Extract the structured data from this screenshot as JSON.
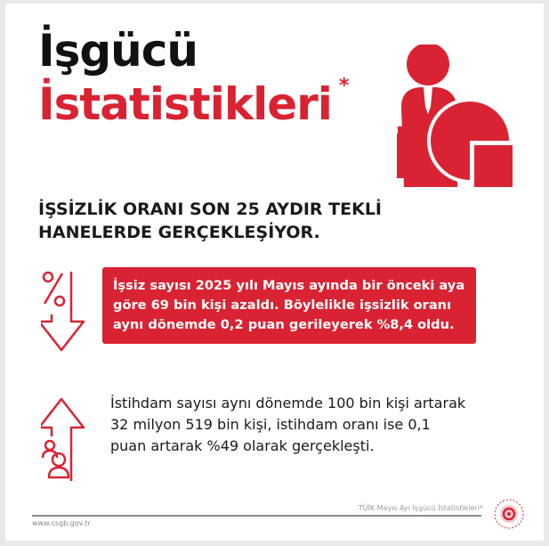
{
  "header": {
    "title_line1": "İşgücü",
    "title_line2": "İstatistikleri",
    "asterisk": "*",
    "hero_icon": "businessman-pie-chart-icon"
  },
  "headline": "İŞSİZLİK ORANI SON 25 AYDIR TEKLİ HANELERDE GERÇEKLEŞİYOR.",
  "unemployment": {
    "icon": "percent-down-arrow-icon",
    "text": "İşsiz sayısı 2025 yılı Mayıs ayında bir önceki aya göre 69 bin kişi azaldı. Böylelikle işsizlik oranı aynı dönemde 0,2 puan gerileyerek %8,4 oldu."
  },
  "employment": {
    "icon": "people-up-arrow-icon",
    "text": "İstihdam sayısı aynı dönemde 100 bin kişi artarak 32 milyon 519 bin kişi, istihdam oranı ise 0,1 puan artarak %49 olarak gerçekleşti."
  },
  "footer": {
    "source": "TÜİK Mayıs Ayı İşgücü İstatistikleri*",
    "website": "www.csgb.gov.tr",
    "logo": "ministry-seal-icon"
  },
  "colors": {
    "accent": "#d92333",
    "text": "#1a1a1a"
  }
}
